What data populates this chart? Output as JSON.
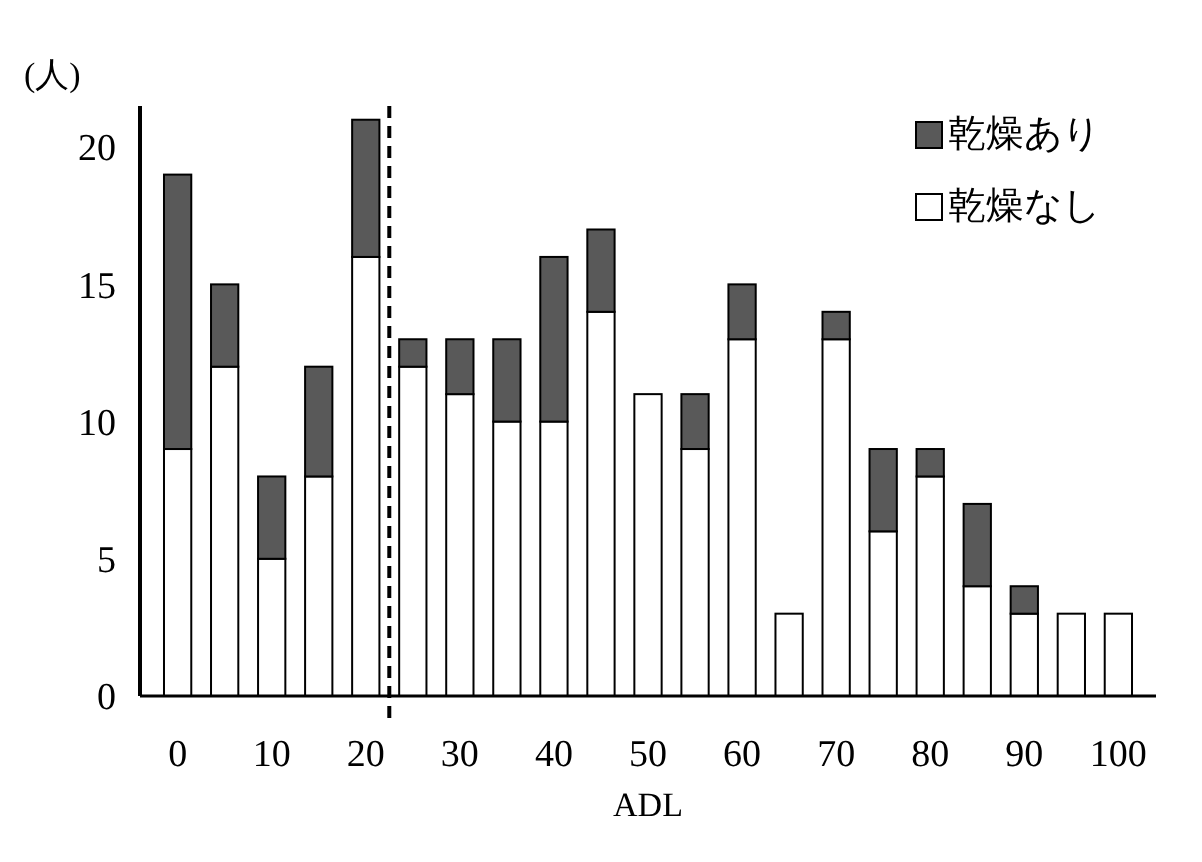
{
  "chart_data": {
    "type": "bar",
    "stacked": true,
    "xlabel": "ADL",
    "ylabel": "(人)",
    "x": [
      0,
      5,
      10,
      15,
      20,
      25,
      30,
      35,
      40,
      45,
      50,
      55,
      60,
      65,
      70,
      75,
      80,
      85,
      90,
      95,
      100
    ],
    "series": [
      {
        "name": "乾燥なし",
        "color": "#ffffff",
        "values": [
          9,
          12,
          5,
          8,
          16,
          12,
          11,
          10,
          10,
          14,
          11,
          9,
          13,
          3,
          13,
          6,
          8,
          4,
          3,
          3,
          3
        ]
      },
      {
        "name": "乾燥あり",
        "color": "#595959",
        "values": [
          10,
          3,
          3,
          4,
          5,
          1,
          2,
          3,
          6,
          3,
          0,
          2,
          2,
          0,
          1,
          3,
          1,
          3,
          1,
          0,
          0
        ]
      }
    ],
    "xlim": [
      -4,
      104
    ],
    "xticks": [
      0,
      10,
      20,
      30,
      40,
      50,
      60,
      70,
      80,
      90,
      100
    ],
    "ylim": [
      0,
      21.5
    ],
    "yticks": [
      0,
      5,
      10,
      15,
      20
    ],
    "ref_lines": [
      {
        "axis": "x",
        "value": 22.5,
        "line_style": "dashed",
        "color": "#000000"
      }
    ],
    "grid": false,
    "legend": "top right"
  }
}
